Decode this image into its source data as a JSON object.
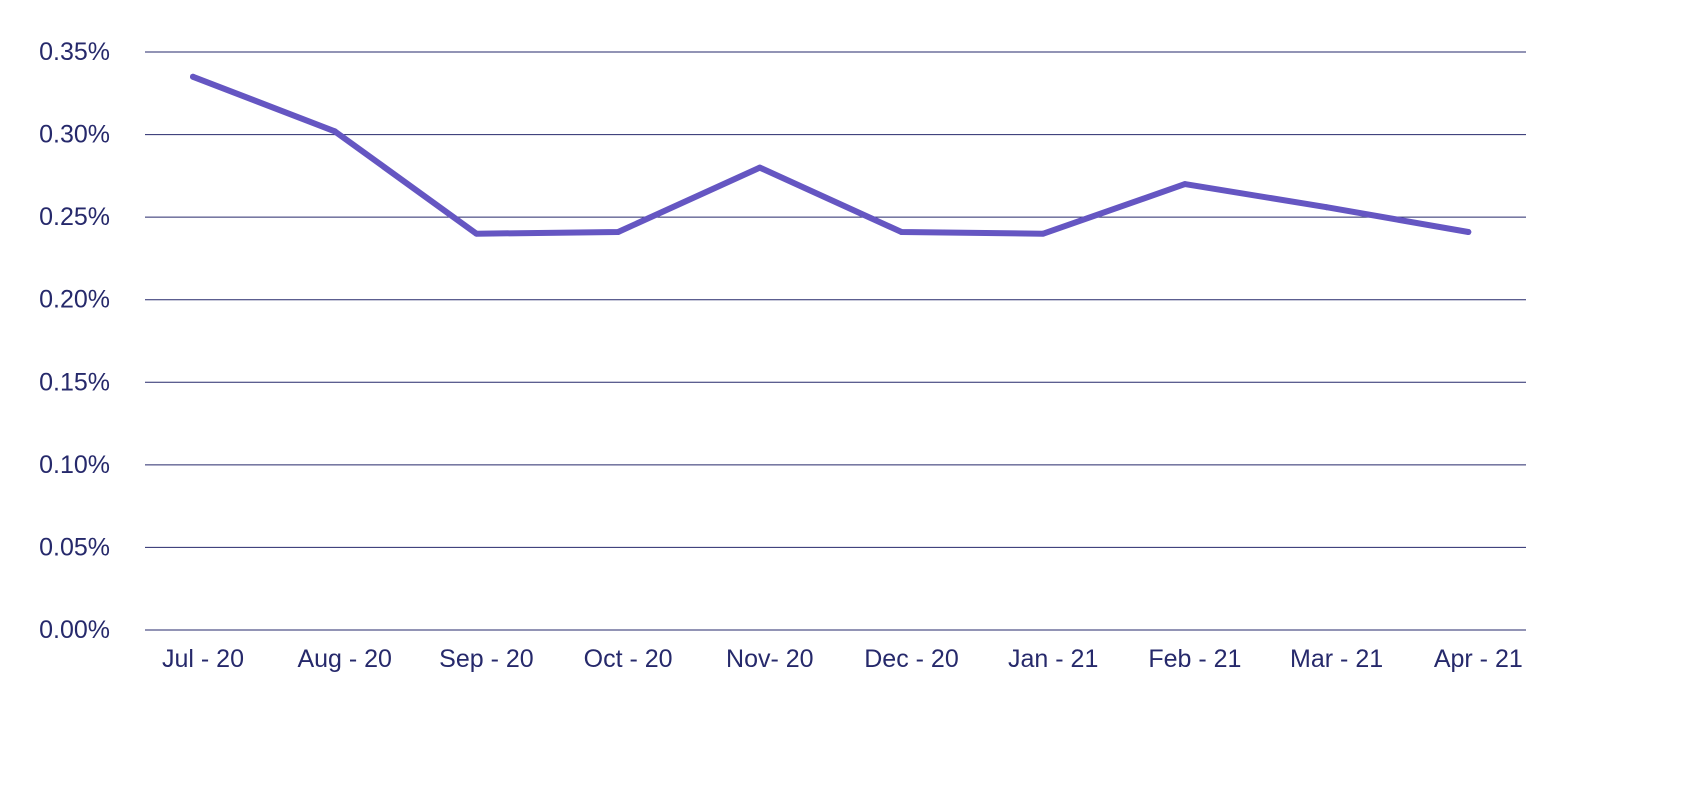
{
  "chart_data": {
    "type": "line",
    "title": "",
    "xlabel": "",
    "ylabel": "",
    "categories": [
      "Jul - 20",
      "Aug - 20",
      "Sep - 20",
      "Oct - 20",
      "Nov- 20",
      "Dec - 20",
      "Jan - 21",
      "Feb - 21",
      "Mar - 21",
      "Apr - 21"
    ],
    "series": [
      {
        "values": [
          0.335,
          0.302,
          0.24,
          0.241,
          0.28,
          0.241,
          0.24,
          0.27,
          0.256,
          0.241
        ],
        "color": "#6556c2"
      }
    ],
    "yticks": [
      "0.00%",
      "0.05%",
      "0.10%",
      "0.15%",
      "0.20%",
      "0.25%",
      "0.30%",
      "0.35%"
    ],
    "ylim": [
      0,
      0.35
    ],
    "grid": true,
    "legend": "none",
    "colors": {
      "text": "#26296b",
      "grid": "#26296b",
      "line": "#6556c2"
    }
  }
}
